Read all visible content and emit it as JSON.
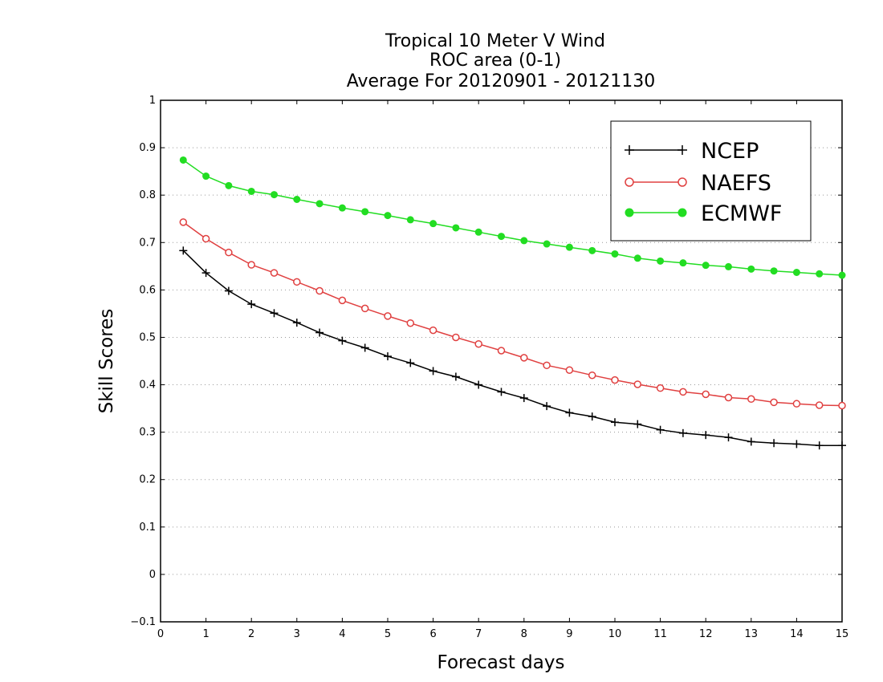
{
  "chart_data": {
    "type": "line",
    "title": [
      "Tropical 10 Meter V Wind",
      "ROC area (0-1)",
      "Average For 20120901 - 20121130"
    ],
    "xlabel": "Forecast days",
    "ylabel": "Skill Scores",
    "xlim": [
      0,
      15
    ],
    "ylim": [
      -0.1,
      1
    ],
    "xticks": [
      "0",
      "1",
      "2",
      "3",
      "4",
      "5",
      "6",
      "7",
      "8",
      "9",
      "10",
      "11",
      "12",
      "13",
      "14",
      "15"
    ],
    "yticks": [
      "−0.1",
      "0",
      "0.1",
      "0.2",
      "0.3",
      "0.4",
      "0.5",
      "0.6",
      "0.7",
      "0.8",
      "0.9",
      "1"
    ],
    "grid": "horizontal-dotted",
    "legend_position": "top-right",
    "x": [
      0.5,
      1,
      1.5,
      2,
      2.5,
      3,
      3.5,
      4,
      4.5,
      5,
      5.5,
      6,
      6.5,
      7,
      7.5,
      8,
      8.5,
      9,
      9.5,
      10,
      10.5,
      11,
      11.5,
      12,
      12.5,
      13,
      13.5,
      14,
      14.5,
      15
    ],
    "series": [
      {
        "name": "NCEP",
        "color": "#000000",
        "marker": "plus",
        "values": [
          0.683,
          0.636,
          0.598,
          0.57,
          0.551,
          0.531,
          0.51,
          0.493,
          0.478,
          0.46,
          0.446,
          0.429,
          0.417,
          0.4,
          0.385,
          0.372,
          0.355,
          0.341,
          0.333,
          0.321,
          0.317,
          0.305,
          0.298,
          0.294,
          0.289,
          0.28,
          0.277,
          0.275,
          0.272,
          0.272
        ]
      },
      {
        "name": "NAEFS",
        "color": "#e04040",
        "marker": "open-circle",
        "values": [
          0.743,
          0.708,
          0.679,
          0.653,
          0.636,
          0.617,
          0.598,
          0.578,
          0.561,
          0.545,
          0.53,
          0.515,
          0.5,
          0.486,
          0.472,
          0.457,
          0.441,
          0.431,
          0.42,
          0.41,
          0.401,
          0.393,
          0.385,
          0.38,
          0.373,
          0.37,
          0.363,
          0.36,
          0.357,
          0.356
        ]
      },
      {
        "name": "ECMWF",
        "color": "#22dd22",
        "marker": "filled-circle",
        "values": [
          0.874,
          0.84,
          0.82,
          0.808,
          0.801,
          0.791,
          0.782,
          0.773,
          0.765,
          0.757,
          0.748,
          0.74,
          0.731,
          0.722,
          0.713,
          0.704,
          0.697,
          0.69,
          0.683,
          0.676,
          0.667,
          0.661,
          0.657,
          0.652,
          0.649,
          0.644,
          0.64,
          0.637,
          0.634,
          0.631
        ]
      }
    ]
  }
}
